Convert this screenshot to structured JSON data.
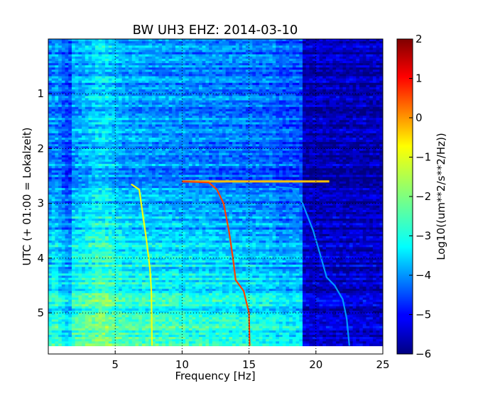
{
  "chart_data": {
    "type": "heatmap",
    "title": "BW UH3 EHZ: 2014-03-10",
    "xlabel": "Frequency [Hz]",
    "ylabel": "UTC (+ 01:00 = Lokalzeit)",
    "xlim": [
      0,
      25
    ],
    "ylim": [
      5.75,
      0
    ],
    "x_ticks": [
      5,
      10,
      15,
      20,
      25
    ],
    "y_ticks": [
      1,
      2,
      3,
      4,
      5
    ],
    "data_time_end": 5.6,
    "grid": true,
    "colormap": "jet",
    "colorbar": {
      "label": "Log10((um**2/s**2/Hz))",
      "range": [
        -6,
        2
      ],
      "ticks": [
        -6,
        -5,
        -4,
        -3,
        -2,
        -1,
        0,
        1,
        2
      ]
    },
    "sweep_lines": [
      {
        "level": -1.1,
        "points": [
          [
            6.2,
            2.65
          ],
          [
            6.8,
            2.75
          ],
          [
            7.0,
            3.1
          ],
          [
            7.3,
            3.6
          ],
          [
            7.6,
            4.2
          ],
          [
            7.7,
            4.6
          ],
          [
            7.75,
            5.6
          ]
        ]
      },
      {
        "level": 0.5,
        "points": [
          [
            10.0,
            2.6
          ],
          [
            12.0,
            2.62
          ],
          [
            12.6,
            2.75
          ],
          [
            13.1,
            3.0
          ],
          [
            13.5,
            3.5
          ],
          [
            13.8,
            4.0
          ],
          [
            14.0,
            4.4
          ],
          [
            14.6,
            4.6
          ],
          [
            15.0,
            5.0
          ],
          [
            15.05,
            5.6
          ]
        ]
      },
      {
        "level": -3.8,
        "points": [
          [
            17.0,
            2.7
          ],
          [
            18.2,
            2.72
          ],
          [
            19.0,
            3.0
          ],
          [
            19.8,
            3.5
          ],
          [
            20.4,
            4.0
          ],
          [
            20.8,
            4.35
          ],
          [
            21.4,
            4.5
          ],
          [
            22.0,
            4.75
          ],
          [
            22.3,
            5.1
          ],
          [
            22.5,
            5.6
          ]
        ]
      }
    ],
    "horizontal_band": {
      "x_range": [
        10,
        21
      ],
      "time": 2.6,
      "level": -0.5
    }
  }
}
